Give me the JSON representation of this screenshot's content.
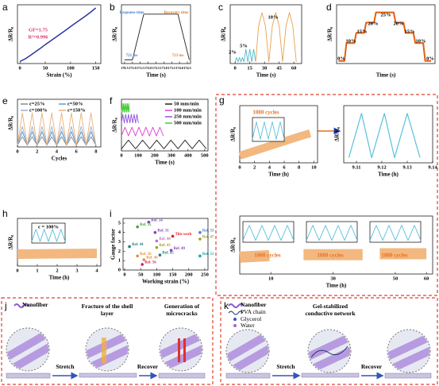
{
  "chart_data": [
    {
      "type": "line",
      "panel": "a",
      "xlabel": "Strain (%)",
      "ylabel": "ΔR/R₀",
      "xlim": [
        -5,
        160
      ],
      "ylim": [
        -0.1,
        2.7
      ],
      "xticks": [
        0,
        50,
        100,
        150
      ],
      "series": [
        {
          "color": "#2e35a0",
          "x": [
            0,
            10,
            20,
            30,
            40,
            50,
            60,
            70,
            80,
            90,
            100,
            110,
            120,
            130,
            140,
            150
          ],
          "values": [
            0,
            0.12,
            0.28,
            0.45,
            0.62,
            0.8,
            0.97,
            1.14,
            1.31,
            1.48,
            1.66,
            1.83,
            2.0,
            2.17,
            2.35,
            2.55
          ]
        }
      ],
      "annotations": [
        "GF=1.75",
        "R²=0.996"
      ]
    },
    {
      "type": "line",
      "panel": "b",
      "xlabel": "Time (s)",
      "ylabel": "ΔR/R₀",
      "xlim": [
        170.3,
        174.7
      ],
      "ylim": [
        -0.05,
        1.2
      ],
      "xticks": [
        170.5,
        {
          "value": 171,
          "label": "171.0"
        },
        171.5,
        {
          "value": 172,
          "label": "172.0"
        },
        172.5,
        {
          "value": 173,
          "label": "173.0"
        },
        173.5,
        {
          "value": 174,
          "label": "174.0"
        },
        174.5
      ],
      "series": [
        {
          "color": "#222222",
          "x": [
            170.5,
            171.0,
            171.72,
            172.5,
            173.9,
            174.62
          ],
          "values": [
            0.03,
            0.03,
            1,
            1,
            1,
            0.03
          ]
        }
      ],
      "annotations": [
        "Response time",
        "Recovery time",
        "721 ms",
        "723 ms"
      ]
    },
    {
      "type": "line",
      "panel": "c",
      "xlabel": "Time (s)",
      "ylabel": "ΔR/R₀",
      "xlim": [
        -5,
        68
      ],
      "ylim": [
        -0.05,
        1.6
      ],
      "xticks": [
        0,
        15,
        30,
        45,
        60
      ],
      "series": [
        {
          "color": "#4db8c9",
          "x": [
            0,
            1.5,
            3,
            4.5,
            6,
            7.5,
            9,
            11,
            13,
            15,
            17,
            19,
            21
          ],
          "values": [
            0,
            0.12,
            0,
            0.12,
            0,
            0.12,
            0,
            0.35,
            0,
            0.35,
            0,
            0.35,
            0
          ]
        },
        {
          "color": "#e8a050",
          "x": [
            21,
            24,
            27.5,
            31,
            34.5,
            38,
            41.5,
            45,
            48.5,
            52,
            55.5,
            59,
            62.5
          ],
          "values": [
            0,
            1.0,
            1.38,
            1.0,
            0,
            1.0,
            1.38,
            1.0,
            0,
            1.0,
            1.38,
            1.0,
            0
          ]
        }
      ],
      "annotations": [
        "2%",
        "5%",
        "10%"
      ]
    },
    {
      "type": "line",
      "panel": "d",
      "xlabel": "Time (s)",
      "ylabel": "ΔR/R₀",
      "xlim": [
        0,
        100
      ],
      "ylim": [
        -0.05,
        1.1
      ],
      "series": [
        {
          "color": "#e06010",
          "x": [
            2,
            8,
            10,
            18,
            20,
            28,
            30,
            38,
            40,
            58,
            60,
            68,
            70,
            78,
            80,
            88,
            90,
            96
          ],
          "values": [
            0,
            0,
            0.35,
            0.35,
            0.55,
            0.55,
            0.75,
            0.75,
            0.95,
            0.95,
            0.75,
            0.75,
            0.55,
            0.55,
            0.35,
            0.35,
            0,
            0
          ]
        }
      ],
      "annotations": [
        "0%",
        "10%",
        "15%",
        "20%",
        "25%",
        "20%",
        "15%",
        "10%",
        "0%"
      ]
    },
    {
      "type": "line",
      "panel": "e",
      "xlabel": "Cycles",
      "ylabel": "ΔR/R₀",
      "xlim": [
        0,
        8.5
      ],
      "ylim": [
        0,
        1.4
      ],
      "xticks": [
        0,
        2,
        4,
        6,
        8
      ],
      "series": [
        {
          "name": "ε=25%",
          "color": "#8c8c8c",
          "x": [
            0,
            0.5,
            1,
            1.5,
            2,
            2.5,
            3,
            3.5,
            4,
            4.5,
            5,
            5.5,
            6,
            6.5,
            7,
            7.5,
            8
          ],
          "values": [
            0.05,
            0.3,
            0.05,
            0.3,
            0.05,
            0.3,
            0.05,
            0.3,
            0.05,
            0.3,
            0.05,
            0.3,
            0.05,
            0.3,
            0.05,
            0.3,
            0.05
          ]
        },
        {
          "name": "ε=50%",
          "color": "#5b9bd5",
          "x": [
            0,
            0.5,
            1,
            1.5,
            2,
            2.5,
            3,
            3.5,
            4,
            4.5,
            5,
            5.5,
            6,
            6.5,
            7,
            7.5,
            8
          ],
          "values": [
            0.05,
            0.45,
            0.05,
            0.45,
            0.05,
            0.45,
            0.05,
            0.45,
            0.05,
            0.45,
            0.05,
            0.45,
            0.05,
            0.45,
            0.05,
            0.45,
            0.05
          ]
        },
        {
          "name": "ε=100%",
          "color": "#9fb0c8",
          "x": [
            0,
            0.5,
            1,
            1.5,
            2,
            2.5,
            3,
            3.5,
            4,
            4.5,
            5,
            5.5,
            6,
            6.5,
            7,
            7.5,
            8
          ],
          "values": [
            0.05,
            0.6,
            0.05,
            0.6,
            0.05,
            0.6,
            0.05,
            0.6,
            0.05,
            0.6,
            0.05,
            0.6,
            0.05,
            0.6,
            0.05,
            0.6,
            0.05
          ]
        },
        {
          "name": "ε=150%",
          "color": "#e8b07a",
          "x": [
            0,
            0.5,
            1,
            1.5,
            2,
            2.5,
            3,
            3.5,
            4,
            4.5,
            5,
            5.5,
            6,
            6.5,
            7,
            7.5,
            8
          ],
          "values": [
            0.05,
            1.0,
            0.05,
            1.0,
            0.05,
            1.0,
            0.05,
            1.0,
            0.05,
            1.0,
            0.05,
            1.0,
            0.05,
            1.0,
            0.05,
            1.0,
            0.05
          ]
        }
      ]
    },
    {
      "type": "line",
      "panel": "f",
      "xlabel": "Time (s)",
      "ylabel": "ΔR/R₀",
      "xlim": [
        0,
        520
      ],
      "ylim": [
        0,
        1.2
      ],
      "xticks": [
        0,
        100,
        200,
        300,
        400,
        500
      ],
      "series": [
        {
          "name": "50 mm/min",
          "color": "#222222",
          "x": [
            0,
            42,
            85,
            127,
            170,
            212,
            255,
            297,
            340,
            382,
            425,
            467,
            510
          ],
          "values": [
            0.05,
            0.25,
            0.05,
            0.25,
            0.05,
            0.25,
            0.05,
            0.25,
            0.05,
            0.25,
            0.05,
            0.25,
            0.05
          ]
        },
        {
          "name": "100 mm/min",
          "color": "#e040d0",
          "x": [
            0,
            21,
            42,
            63,
            84,
            105,
            126,
            147,
            168,
            189,
            210,
            231,
            252
          ],
          "values": [
            0.35,
            0.55,
            0.35,
            0.55,
            0.35,
            0.55,
            0.35,
            0.55,
            0.35,
            0.55,
            0.35,
            0.55,
            0.35
          ]
        },
        {
          "name": "250 mm/min",
          "color": "#9050e0",
          "x": [
            0,
            8,
            17,
            25,
            34,
            42,
            51,
            59,
            68,
            76,
            85,
            93,
            102
          ],
          "values": [
            0.65,
            0.85,
            0.65,
            0.85,
            0.65,
            0.85,
            0.65,
            0.85,
            0.65,
            0.85,
            0.65,
            0.85,
            0.65
          ]
        },
        {
          "name": "500 mm/min",
          "color": "#44cc33",
          "x": [
            0,
            4,
            8,
            12,
            16,
            20,
            24,
            28,
            32,
            36,
            40,
            44,
            48
          ],
          "values": [
            0.9,
            1.1,
            0.9,
            1.1,
            0.9,
            1.1,
            0.9,
            1.1,
            0.9,
            1.1,
            0.9,
            1.1,
            0.9
          ]
        }
      ]
    },
    {
      "type": "line",
      "panel": "g",
      "xlabel": "Time (h)",
      "ylabel": "ΔR/R₀",
      "xlim": [
        0,
        10.5
      ],
      "ylim": [
        0,
        1.2
      ],
      "xticks": [
        0,
        2,
        4,
        6,
        8,
        10
      ],
      "series": [
        {
          "color": "#f2b880",
          "x": [
            0,
            2,
            4,
            6,
            8,
            9.5
          ],
          "values": [
            0.15,
            0.25,
            0.35,
            0.45,
            0.55,
            0.62
          ]
        }
      ],
      "annotations": [
        "1000 cycles"
      ]
    },
    {
      "type": "line",
      "xlim": [
        0,
        8
      ],
      "ylim": [
        0,
        1.1
      ],
      "series": [
        {
          "color": "#5bc0de",
          "x": [
            0,
            1,
            2,
            3,
            4,
            5,
            6,
            7,
            8
          ],
          "values": [
            0.1,
            0.9,
            0.1,
            0.9,
            0.1,
            0.9,
            0.1,
            0.9,
            0.1
          ]
        }
      ]
    },
    {
      "type": "line",
      "xlabel": "Time (h)",
      "ylabel": "ΔR/R₀",
      "xlim": [
        9.105,
        9.14
      ],
      "ylim": [
        0,
        1.1
      ],
      "xticks": [
        9.11,
        9.12,
        9.13,
        9.14
      ],
      "series": [
        {
          "color": "#5bc0de",
          "x": [
            9.107,
            9.112,
            9.116,
            9.121,
            9.125,
            9.13,
            9.135
          ],
          "values": [
            0.1,
            0.95,
            0.1,
            0.95,
            0.1,
            0.95,
            0.1
          ]
        }
      ]
    },
    {
      "type": "line",
      "xlabel": "Time (h)",
      "ylabel": "ΔR/R₀",
      "xlim": [
        0,
        62
      ],
      "ylim": [
        0,
        1.2
      ],
      "xticks": [
        10,
        30,
        50,
        60
      ],
      "series": [
        {
          "color": "#f2b880",
          "x": [
            0,
            9.5,
            10,
            20.5,
            39.5,
            40,
            45,
            60
          ],
          "values": [
            0.35,
            0.38,
            null,
            0.4,
            0.4,
            null,
            0.42,
            0.42
          ]
        }
      ],
      "annotations": [
        "1000 cycles",
        "1000 cycles",
        "1000 cycles"
      ]
    },
    {
      "type": "line",
      "xlim": [
        0,
        8
      ],
      "ylim": [
        0,
        1.1
      ],
      "series": [
        {
          "color": "#5bc0de",
          "x": [
            0,
            1,
            2,
            3,
            4,
            5,
            6,
            7,
            8
          ],
          "values": [
            0.1,
            0.9,
            0.1,
            0.9,
            0.1,
            0.9,
            0.1,
            0.9,
            0.1
          ]
        }
      ]
    },
    {
      "type": "line",
      "xlim": [
        0,
        8
      ],
      "ylim": [
        0,
        1.1
      ],
      "series": [
        {
          "color": "#5bc0de",
          "x": [
            0,
            1,
            2,
            3,
            4,
            5,
            6,
            7,
            8
          ],
          "values": [
            0.1,
            0.9,
            0.1,
            0.9,
            0.1,
            0.9,
            0.1,
            0.9,
            0.1
          ]
        }
      ]
    },
    {
      "type": "line",
      "xlim": [
        0,
        8
      ],
      "ylim": [
        0,
        1.1
      ],
      "series": [
        {
          "color": "#5bc0de",
          "x": [
            0,
            1,
            2,
            3,
            4,
            5,
            6,
            7,
            8
          ],
          "values": [
            0.1,
            0.9,
            0.1,
            0.9,
            0.1,
            0.9,
            0.1,
            0.9,
            0.1
          ]
        }
      ]
    },
    {
      "type": "line",
      "panel": "h",
      "xlabel": "Time (h)",
      "ylabel": "ΔR/R₀",
      "xlim": [
        0,
        4.2
      ],
      "ylim": [
        0,
        1.2
      ],
      "xticks": [
        0,
        1,
        2,
        3,
        4
      ],
      "series": [
        {
          "color": "#f2b880",
          "x": [
            0,
            4
          ],
          "values": [
            0.3,
            0.32
          ]
        }
      ]
    },
    {
      "type": "line",
      "xlim": [
        0,
        8
      ],
      "ylim": [
        0,
        1.3
      ],
      "series": [
        {
          "color": "#5bc0de",
          "x": [
            0,
            1,
            2,
            3,
            4,
            5,
            6,
            7,
            8
          ],
          "values": [
            0.1,
            0.9,
            0.1,
            0.9,
            0.1,
            0.9,
            0.1,
            0.9,
            0.1
          ]
        }
      ],
      "annotations": [
        "ε = 100%"
      ]
    },
    {
      "type": "scatter",
      "panel": "i",
      "xlabel": "Working strain (%)",
      "ylabel": "Gauge factor",
      "xlim": [
        -5,
        260
      ],
      "ylim": [
        0,
        5.5
      ],
      "xticks": [
        0,
        50,
        100,
        150,
        200,
        250
      ],
      "yticks": [
        0,
        1,
        2,
        3,
        4,
        5
      ],
      "points": [
        {
          "label": "Ref. 54",
          "x": 75,
          "y": 5.1,
          "color": "#8040c0"
        },
        {
          "label": "Ref. 55",
          "x": 40,
          "y": 4.6,
          "color": "#40a040"
        },
        {
          "label": "Ref. 31",
          "x": 95,
          "y": 4.0,
          "color": "#8040c0"
        },
        {
          "label": "This work",
          "x": 150,
          "y": 3.6,
          "color": "#e02020"
        },
        {
          "label": "Ref. 53",
          "x": 235,
          "y": 4.0,
          "color": "#4080d0"
        },
        {
          "label": "Ref. 47",
          "x": 235,
          "y": 3.3,
          "color": "#a0a020"
        },
        {
          "label": "Ref. 48",
          "x": 100,
          "y": 3.1,
          "color": "#c070c0"
        },
        {
          "label": "Ref. 44",
          "x": 15,
          "y": 2.5,
          "color": "#208080"
        },
        {
          "label": "Ref. 43",
          "x": 100,
          "y": 2.4,
          "color": "#a0a020"
        },
        {
          "label": "Ref. 49",
          "x": 145,
          "y": 2.1,
          "color": "#8040c0"
        },
        {
          "label": "Ref. 45",
          "x": 110,
          "y": 1.6,
          "color": "#208080"
        },
        {
          "label": "Ref. 50",
          "x": 40,
          "y": 1.5,
          "color": "#e09040"
        },
        {
          "label": "Ref. 51",
          "x": 235,
          "y": 1.5,
          "color": "#20a0a0"
        },
        {
          "label": "Ref. 46",
          "x": 60,
          "y": 1.1,
          "color": "#e09040"
        },
        {
          "label": "Ref. 56",
          "x": 55,
          "y": 0.6,
          "color": "#d02060"
        }
      ]
    }
  ],
  "diagrams": {
    "j": {
      "panel": "j",
      "legend": "Nanofiber",
      "steps": [
        "Fracture of the shell layer",
        "Generation of microcracks"
      ],
      "arrows": [
        "Stretch",
        "Recover"
      ]
    },
    "k": {
      "panel": "k",
      "legend": [
        "Nanofiber",
        "PVA chain",
        "Glycerol",
        "Water"
      ],
      "steps": [
        "Gel-stabilized conductive network"
      ],
      "arrows": [
        "Stretch",
        "Recover"
      ]
    }
  }
}
